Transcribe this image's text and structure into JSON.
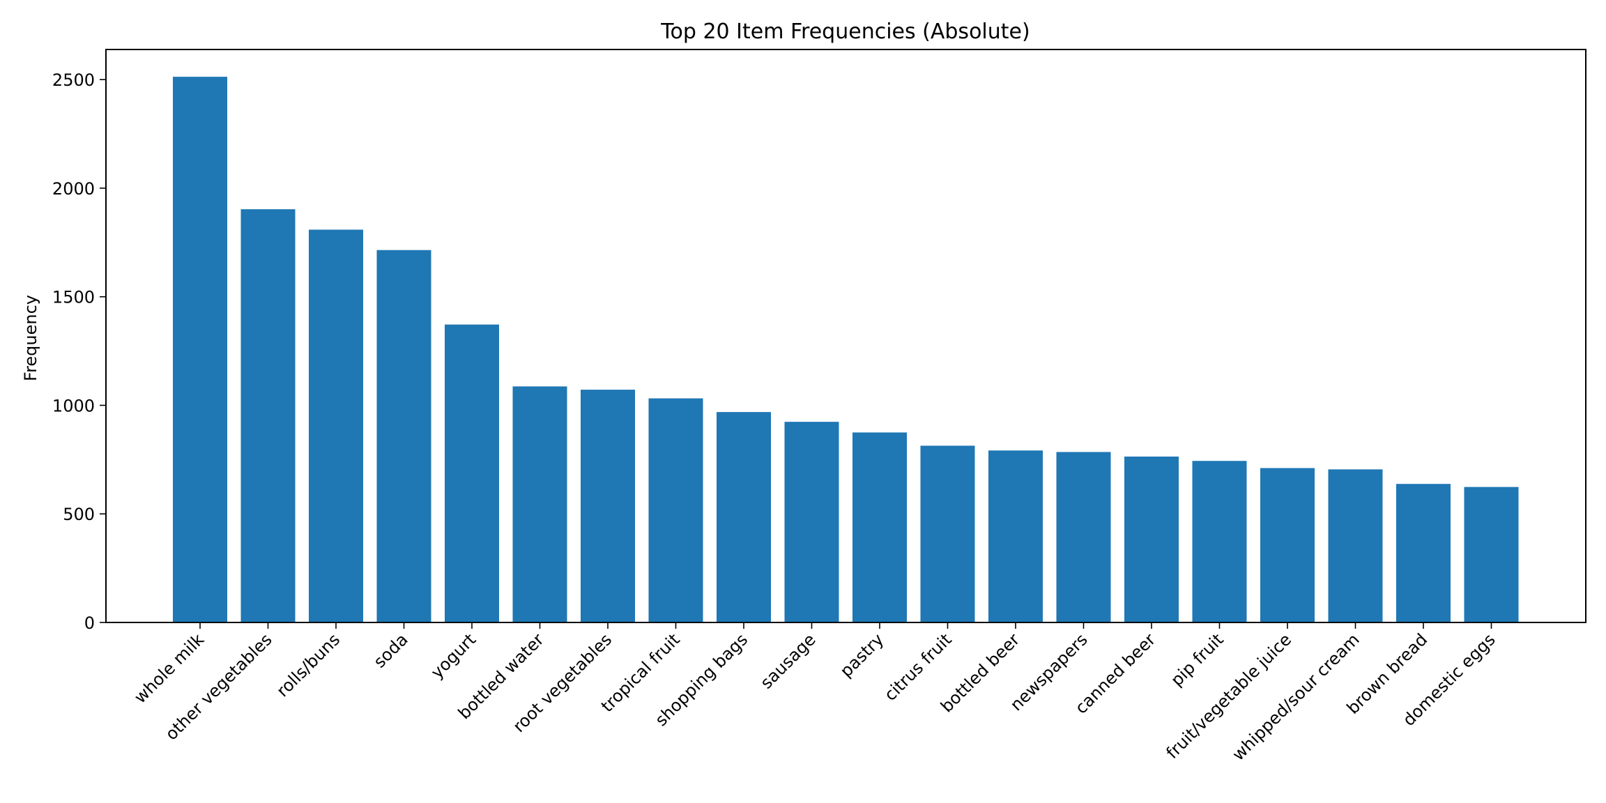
{
  "chart_data": {
    "type": "bar",
    "title": "Top 20 Item Frequencies (Absolute)",
    "xlabel": "",
    "ylabel": "Frequency",
    "categories": [
      "whole milk",
      "other vegetables",
      "rolls/buns",
      "soda",
      "yogurt",
      "bottled water",
      "root vegetables",
      "tropical fruit",
      "shopping bags",
      "sausage",
      "pastry",
      "citrus fruit",
      "bottled beer",
      "newspapers",
      "canned beer",
      "pip fruit",
      "fruit/vegetable juice",
      "whipped/sour cream",
      "brown bread",
      "domestic eggs"
    ],
    "values": [
      2513,
      1903,
      1809,
      1715,
      1372,
      1087,
      1072,
      1032,
      969,
      924,
      875,
      814,
      792,
      785,
      764,
      744,
      711,
      705,
      638,
      624
    ],
    "ylim": [
      0,
      2638.65
    ],
    "yticks": [
      "0",
      "500",
      "1000",
      "1500",
      "2000",
      "2500"
    ],
    "bar_color": "#1f77b4",
    "grid": false,
    "legend": "none"
  }
}
